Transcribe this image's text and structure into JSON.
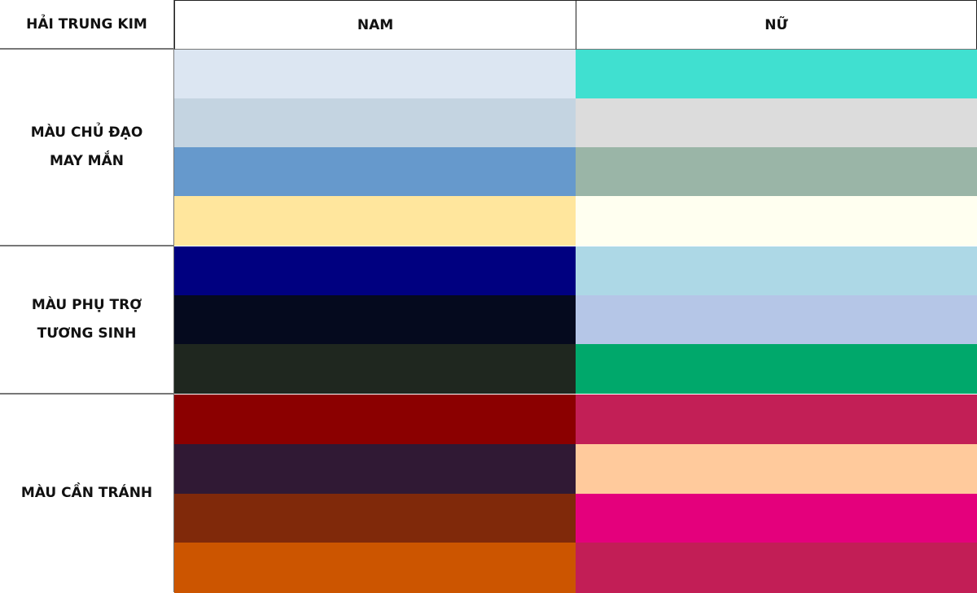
{
  "header": {
    "corner": "HẢI TRUNG KIM",
    "nam": "NAM",
    "nu": "NỮ"
  },
  "sections": [
    {
      "label_lines": [
        "MÀU CHỦ ĐẠO",
        "MAY MẮN"
      ],
      "nam_colors": [
        "#DCE6F2",
        "#C4D4E1",
        "#6699CC",
        "#FFE69D"
      ],
      "nu_colors": [
        "#40E0D0",
        "#DCDCDC",
        "#9AB5A7",
        "#FFFFF0"
      ]
    },
    {
      "label_lines": [
        "MÀU PHỤ TRỢ",
        "TƯƠNG SINH"
      ],
      "nam_colors": [
        "#000080",
        "#050A1E",
        "#1F271F"
      ],
      "nu_colors": [
        "#ADD8E6",
        "#B5C6E7",
        "#00A86B"
      ]
    },
    {
      "label_lines": [
        "MÀU CẦN TRÁNH"
      ],
      "nam_colors": [
        "#8B0000",
        "#301934",
        "#80290A",
        "#CC5500"
      ],
      "nu_colors": [
        "#C21F56",
        "#FFCA9C",
        "#E4007C",
        "#C21E56"
      ]
    }
  ]
}
